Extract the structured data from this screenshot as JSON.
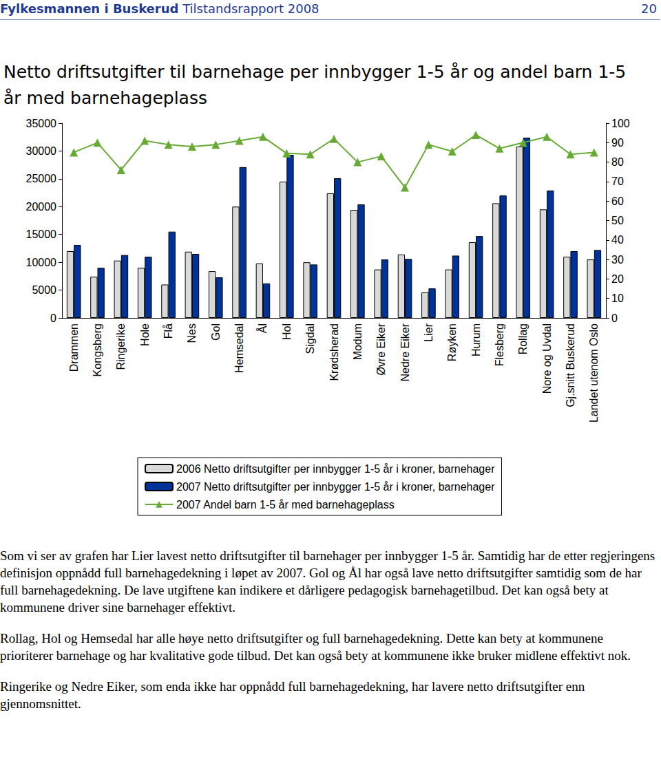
{
  "header": {
    "org": "Fylkesmannen i Buskerud",
    "report": "Tilstandsrapport 2008",
    "page": "20"
  },
  "chart_data": {
    "type": "bar",
    "title": "Netto driftsutgifter til barnehage per innbygger 1-5 år og andel barn 1-5 år med barnehageplass",
    "categories": [
      "Drammen",
      "Kongsberg",
      "Ringerike",
      "Hole",
      "Flå",
      "Nes",
      "Gol",
      "Hemsedal",
      "Ål",
      "Hol",
      "Sigdal",
      "Krødsherad",
      "Modum",
      "Øvre Eiker",
      "Nedre Eiker",
      "Lier",
      "Røyken",
      "Hurum",
      "Flesberg",
      "Rollag",
      "Nore og Uvdal",
      "Gj.snitt Buskerud",
      "Landet utenom Oslo"
    ],
    "series": [
      {
        "name": "2006 Netto driftsutgifter per innbygger 1-5 år i kroner, barnehager",
        "type": "bar",
        "color": "#d9d9d9",
        "values": [
          12000,
          7400,
          10300,
          9000,
          6000,
          11900,
          8400,
          20000,
          9800,
          24500,
          10000,
          22400,
          19400,
          8700,
          11400,
          4600,
          8700,
          13600,
          20600,
          30800,
          19500,
          11000,
          10500
        ]
      },
      {
        "name": "2007 Netto driftsutgifter per innbygger 1-5 år i kroner, barnehager",
        "type": "bar",
        "color": "#003399",
        "values": [
          13100,
          9000,
          11300,
          11000,
          15500,
          11500,
          7300,
          27100,
          6200,
          29300,
          9600,
          25100,
          20400,
          10500,
          10600,
          5300,
          11200,
          14700,
          22000,
          32400,
          22900,
          12000,
          12200
        ]
      },
      {
        "name": "2007 Andel barn 1-5 år med barnehageplass",
        "type": "line",
        "color": "#66aa33",
        "axis": "y2",
        "marker": "triangle",
        "values": [
          85,
          90,
          76,
          91,
          89,
          88,
          89,
          91,
          93,
          84.5,
          84,
          92,
          80,
          83,
          67,
          89,
          85.5,
          94,
          87,
          90,
          93,
          84,
          85
        ]
      }
    ],
    "ylim": [
      0,
      35000
    ],
    "yticks": [
      0,
      5000,
      10000,
      15000,
      20000,
      25000,
      30000,
      35000
    ],
    "y2lim": [
      0,
      100
    ],
    "y2ticks": [
      0,
      10,
      20,
      30,
      40,
      50,
      60,
      70,
      80,
      90,
      100
    ],
    "grid": false,
    "legend": "bottom"
  },
  "paragraphs": [
    "Som vi ser av grafen har Lier lavest netto driftsutgifter til barnehager per innbygger 1-5 år. Samtidig har de etter regjeringens definisjon oppnådd full barnehagedekning i løpet av 2007. Gol og Ål har også lave netto driftsutgifter samtidig som de har full barnehagedekning. De lave utgiftene kan indikere et dårligere pedagogisk barnehagetilbud. Det kan også bety at kommunene driver sine barnehager effektivt.",
    "Rollag, Hol og Hemsedal har alle høye netto driftsutgifter og full barnehagedekning. Dette kan bety at kommunene prioriterer barnehage og har kvalitative gode tilbud. Det kan også bety at kommunene ikke bruker midlene effektivt nok.",
    "Ringerike og Nedre Eiker, som enda ikke har oppnådd full barnehagedekning, har lavere netto driftsutgifter enn gjennomsnittet."
  ]
}
